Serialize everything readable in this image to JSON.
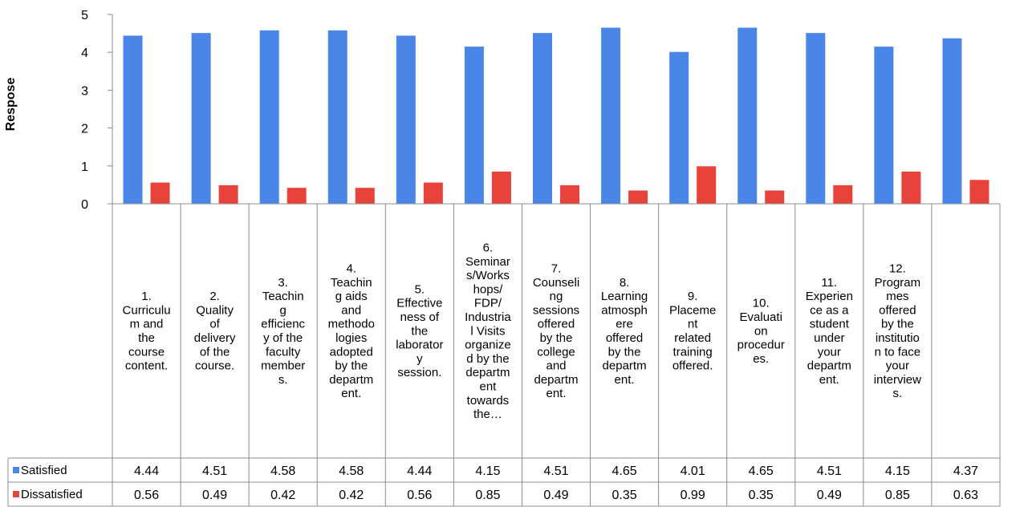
{
  "chart_data": {
    "type": "bar",
    "ylabel": "Respose",
    "ylim": [
      0,
      5
    ],
    "yticks": [
      0,
      1,
      2,
      3,
      4,
      5
    ],
    "grid": false,
    "legend": "data-table",
    "categories": [
      [
        "1.",
        "Curriculu",
        "m and",
        "the",
        "course",
        "content."
      ],
      [
        "2.",
        "Quality",
        "of",
        "delivery",
        "of the",
        "course."
      ],
      [
        "3.",
        "Teachin",
        "g",
        "efficienc",
        "y of the",
        "faculty",
        "member",
        "s."
      ],
      [
        "4.",
        "Teachin",
        "g aids",
        "and",
        "methodo",
        "logies",
        "adopted",
        "by the",
        "departm",
        "ent."
      ],
      [
        "5.",
        "Effective",
        "ness of",
        "the",
        "laborator",
        "y",
        "session."
      ],
      [
        "6.",
        "Seminar",
        "s/Works",
        "hops/",
        "FDP/",
        "Industria",
        "l Visits",
        "organize",
        "d by the",
        "departm",
        "ent",
        "towards",
        "the…"
      ],
      [
        "7.",
        "Counseli",
        "ng",
        "sessions",
        "offered",
        "by the",
        "college",
        "and",
        "departm",
        "ent."
      ],
      [
        "8.",
        "Learning",
        "atmosph",
        "ere",
        "offered",
        "by the",
        "departm",
        "ent."
      ],
      [
        "9.",
        "Placeme",
        "nt",
        "related",
        "training",
        "offered."
      ],
      [
        "10.",
        "Evaluati",
        "on",
        "procedur",
        "es."
      ],
      [
        "11.",
        "Experien",
        "ce as a",
        "student",
        "under",
        "your",
        "departm",
        "ent."
      ],
      [
        "12.",
        "Program",
        "mes",
        "offered",
        "by the",
        "institutio",
        "n to face",
        "your",
        "interview",
        "s."
      ],
      []
    ],
    "series": [
      {
        "name": "Satisfied",
        "color": "#4A86E8",
        "values": [
          4.44,
          4.51,
          4.58,
          4.58,
          4.44,
          4.15,
          4.51,
          4.65,
          4.01,
          4.65,
          4.51,
          4.15,
          4.37
        ]
      },
      {
        "name": "Dissatisfied",
        "color": "#E8433A",
        "values": [
          0.56,
          0.49,
          0.42,
          0.42,
          0.56,
          0.85,
          0.49,
          0.35,
          0.99,
          0.35,
          0.49,
          0.85,
          0.63
        ]
      }
    ]
  }
}
